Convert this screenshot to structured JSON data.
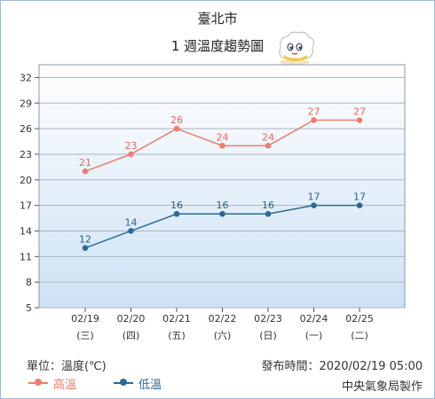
{
  "header": {
    "city": "臺北市",
    "subtitle": "1 週溫度趨勢圖"
  },
  "footer": {
    "unit_label": "單位：溫度(℃)",
    "publish_label": "發布時間：2020/02/19 05:00",
    "agency": "中央氣象局製作"
  },
  "colors": {
    "high": "#f07d6e",
    "low": "#2b6a98",
    "plot_top": "#ffffff",
    "plot_bottom": "#cde2f4"
  },
  "chart_data": {
    "type": "line",
    "x": [
      "02/19",
      "02/20",
      "02/21",
      "02/22",
      "02/23",
      "02/24",
      "02/25"
    ],
    "x_sub": [
      "(三)",
      "(四)",
      "(五)",
      "(六)",
      "(日)",
      "(一)",
      "(二)"
    ],
    "y_ticks": [
      5,
      8,
      11,
      14,
      17,
      20,
      23,
      26,
      29,
      32
    ],
    "ylim": [
      5,
      33.5
    ],
    "grid": true,
    "legend": "bottom-left",
    "series": [
      {
        "name": "高溫",
        "values": [
          21,
          23,
          26,
          24,
          24,
          27,
          27
        ]
      },
      {
        "name": "低溫",
        "values": [
          12,
          14,
          16,
          16,
          16,
          17,
          17
        ]
      }
    ]
  }
}
